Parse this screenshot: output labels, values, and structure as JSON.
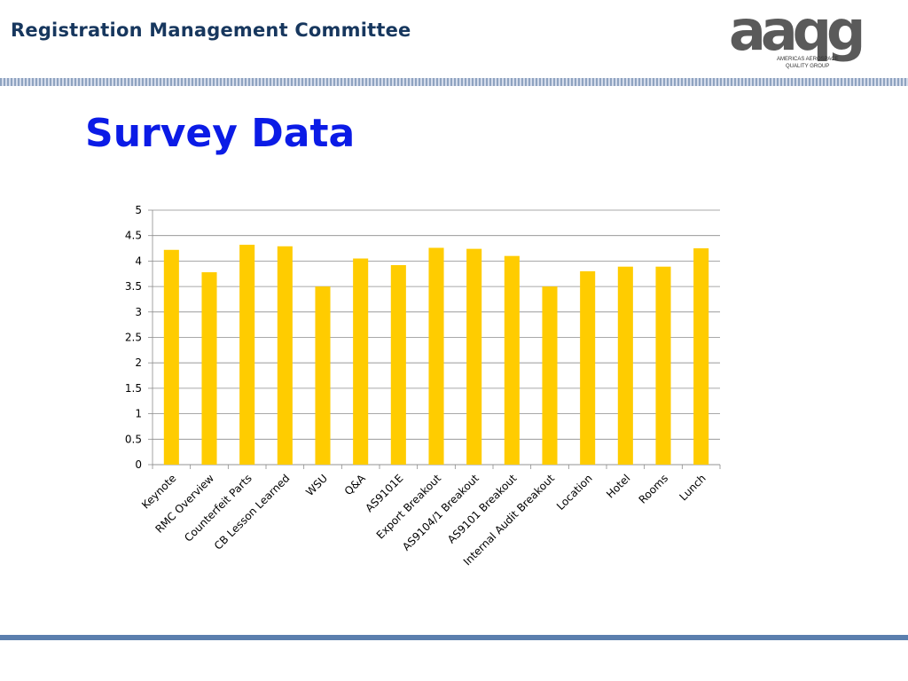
{
  "header": {
    "title": "Registration Management Committee",
    "logo": {
      "letters": "aaqg",
      "line1": "AMERICAS AEROSPACE",
      "line2": "QUALITY GROUP"
    }
  },
  "slide": {
    "title": "Survey Data"
  },
  "colors": {
    "bar": "#ffcc00",
    "header_text": "#17375e",
    "title_text": "#0b1be6"
  },
  "chart_data": {
    "type": "bar",
    "categories": [
      "Keynote",
      "RMC Overview",
      "Counterfeit Parts",
      "CB Lesson Learned",
      "WSU",
      "Q&A",
      "AS9101E",
      "Export Breakout",
      "AS9104/1 Breakout",
      "AS9101 Breakout",
      "Internal Audit Breakout",
      "Location",
      "Hotel",
      "Rooms",
      "Lunch"
    ],
    "values": [
      4.22,
      3.78,
      4.32,
      4.29,
      3.5,
      4.05,
      3.92,
      4.26,
      4.24,
      4.1,
      3.5,
      3.8,
      3.89,
      3.89,
      4.25
    ],
    "ylim": [
      0,
      5
    ],
    "yticks": [
      "0",
      "0.5",
      "1",
      "1.5",
      "2",
      "2.5",
      "3",
      "3.5",
      "4",
      "4.5",
      "5"
    ],
    "grid": true,
    "legend": "none"
  }
}
